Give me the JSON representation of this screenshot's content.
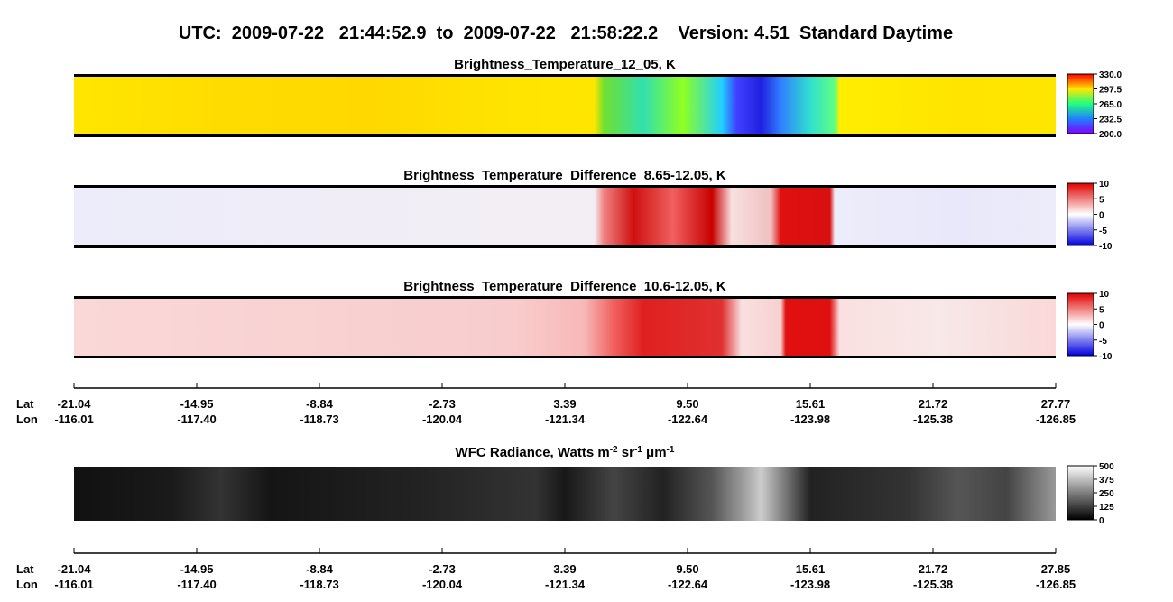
{
  "header": {
    "title": "UTC:  2009-07-22   21:44:52.9  to  2009-07-22   21:58:22.2    Version: 4.51  Standard Daytime"
  },
  "panels": [
    {
      "title": "Brightness_Temperature_12_05, K",
      "colorbar_ticks": [
        "330.0",
        "297.5",
        "265.0",
        "232.5",
        "200.0"
      ]
    },
    {
      "title": "Brightness_Temperature_Difference_8.65-12.05, K",
      "colorbar_ticks": [
        "10",
        "5",
        "0",
        "-5",
        "-10"
      ]
    },
    {
      "title": "Brightness_Temperature_Difference_10.6-12.05, K",
      "colorbar_ticks": [
        "10",
        "5",
        "0",
        "-5",
        "-10"
      ]
    }
  ],
  "radiance": {
    "title_parts": [
      "WFC Radiance, Watts m",
      "-2",
      " sr",
      "-1",
      " μm",
      "-1"
    ],
    "colorbar_ticks": [
      "500",
      "375",
      "250",
      "125",
      "0"
    ]
  },
  "axes": [
    {
      "row_labels": [
        "Lat",
        "Lon"
      ],
      "lat": [
        "-21.04",
        "-14.95",
        "-8.84",
        "-2.73",
        "3.39",
        "9.50",
        "15.61",
        "21.72",
        "27.77"
      ],
      "lon": [
        "-116.01",
        "-117.40",
        "-118.73",
        "-120.04",
        "-121.34",
        "-122.64",
        "-123.98",
        "-125.38",
        "-126.85"
      ]
    },
    {
      "row_labels": [
        "Lat",
        "Lon"
      ],
      "lat": [
        "-21.04",
        "-14.95",
        "-8.84",
        "-2.73",
        "3.39",
        "9.50",
        "15.61",
        "21.72",
        "27.85"
      ],
      "lon": [
        "-116.01",
        "-117.40",
        "-118.73",
        "-120.04",
        "-121.34",
        "-122.64",
        "-123.98",
        "-125.38",
        "-126.85"
      ]
    }
  ]
}
